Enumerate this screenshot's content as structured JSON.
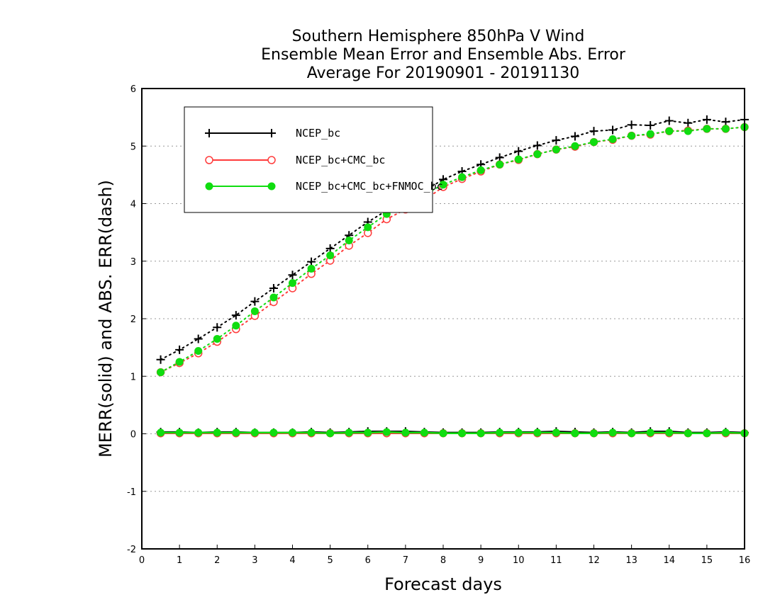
{
  "chart_data": {
    "type": "line",
    "title_lines": [
      "Southern Hemisphere 850hPa V Wind",
      "Ensemble Mean Error and Ensemble Abs. Error",
      "Average For 20190901 - 20191130"
    ],
    "xlabel": "Forecast days",
    "ylabel": "MERR(solid) and ABS. ERR(dash)",
    "xlim": [
      0,
      16
    ],
    "ylim": [
      -2,
      6
    ],
    "xticks": [
      "0",
      "1",
      "2",
      "3",
      "4",
      "5",
      "6",
      "7",
      "8",
      "9",
      "10",
      "11",
      "12",
      "13",
      "14",
      "15",
      "16"
    ],
    "yticks": [
      "-2",
      "-1",
      "0",
      "1",
      "2",
      "3",
      "4",
      "5",
      "6"
    ],
    "grid": "horizontal dotted",
    "legend_position": "top-left",
    "x": [
      0.5,
      1,
      1.5,
      2,
      2.5,
      3,
      3.5,
      4,
      4.5,
      5,
      5.5,
      6,
      6.5,
      7,
      7.5,
      8,
      8.5,
      9,
      9.5,
      10,
      10.5,
      11,
      11.5,
      12,
      12.5,
      13,
      13.5,
      14,
      14.5,
      15,
      15.5,
      16
    ],
    "series": [
      {
        "name": "NCEP_bc",
        "color": "#000000",
        "marker": "plus",
        "abs_err": [
          1.29,
          1.46,
          1.65,
          1.85,
          2.06,
          2.3,
          2.53,
          2.76,
          2.99,
          3.22,
          3.45,
          3.68,
          3.88,
          4.06,
          4.22,
          4.42,
          4.56,
          4.68,
          4.8,
          4.91,
          5.01,
          5.1,
          5.17,
          5.26,
          5.28,
          5.37,
          5.36,
          5.44,
          5.4,
          5.46,
          5.42,
          5.46
        ],
        "mean_err": [
          0.03,
          0.03,
          0.02,
          0.03,
          0.03,
          0.02,
          0.02,
          0.02,
          0.03,
          0.02,
          0.03,
          0.04,
          0.04,
          0.04,
          0.03,
          0.02,
          0.02,
          0.02,
          0.03,
          0.03,
          0.03,
          0.04,
          0.03,
          0.02,
          0.03,
          0.02,
          0.04,
          0.04,
          0.02,
          0.02,
          0.03,
          0.02
        ]
      },
      {
        "name": "NCEP_bc+CMC_bc",
        "color": "#ff3b3b",
        "marker": "circle-open",
        "abs_err": [
          1.07,
          1.23,
          1.4,
          1.6,
          1.82,
          2.05,
          2.29,
          2.53,
          2.78,
          3.01,
          3.27,
          3.49,
          3.73,
          3.9,
          4.06,
          4.29,
          4.43,
          4.56,
          4.68,
          4.76,
          4.86,
          4.94,
          4.99,
          5.07,
          5.11,
          5.18,
          5.2,
          5.26,
          5.27,
          5.3,
          5.3,
          5.33
        ],
        "mean_err": [
          0.01,
          0.01,
          0.01,
          0.01,
          0.01,
          0.01,
          0.01,
          0.01,
          0.01,
          0.01,
          0.01,
          0.01,
          0.01,
          0.01,
          0.01,
          0.01,
          0.01,
          0.01,
          0.01,
          0.01,
          0.01,
          0.01,
          0.01,
          0.01,
          0.01,
          0.01,
          0.01,
          0.01,
          0.01,
          0.01,
          0.01,
          0.01
        ]
      },
      {
        "name": "NCEP_bc+CMC_bc+FNMOC_bc",
        "color": "#10dd10",
        "marker": "circle-filled",
        "abs_err": [
          1.07,
          1.25,
          1.44,
          1.65,
          1.88,
          2.13,
          2.37,
          2.62,
          2.87,
          3.1,
          3.36,
          3.59,
          3.82,
          3.99,
          4.16,
          4.33,
          4.46,
          4.58,
          4.68,
          4.77,
          4.86,
          4.94,
          5.0,
          5.07,
          5.12,
          5.18,
          5.21,
          5.26,
          5.26,
          5.3,
          5.3,
          5.33
        ],
        "mean_err": [
          0.02,
          0.02,
          0.02,
          0.02,
          0.02,
          0.02,
          0.02,
          0.02,
          0.02,
          0.01,
          0.02,
          0.02,
          0.03,
          0.02,
          0.02,
          0.01,
          0.01,
          0.01,
          0.02,
          0.02,
          0.02,
          0.02,
          0.01,
          0.01,
          0.02,
          0.01,
          0.02,
          0.02,
          0.01,
          0.01,
          0.02,
          0.01
        ]
      }
    ]
  }
}
